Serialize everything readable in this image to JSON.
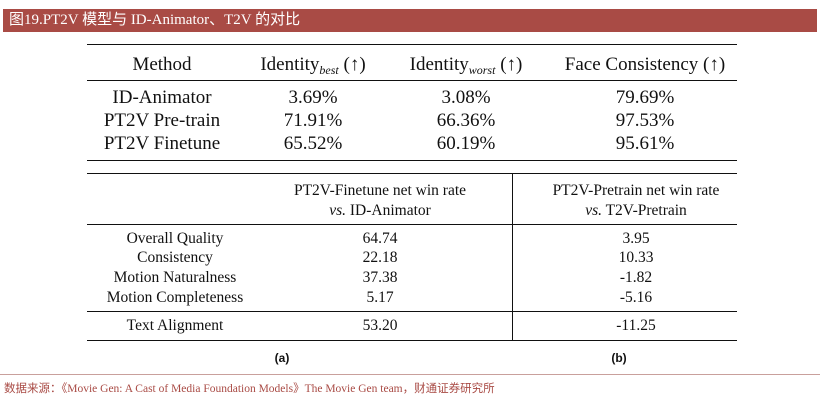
{
  "figure_title": "图19.PT2V 模型与 ID-Animator、T2V 的对比",
  "table1": {
    "headers": {
      "method": "Method",
      "id_best": "Identity",
      "id_best_sub": "best",
      "id_worst": "Identity",
      "id_worst_sub": "worst",
      "face": "Face Consistency",
      "arrow": "(↑)"
    },
    "rows": [
      {
        "method": "ID-Animator",
        "best": "3.69%",
        "worst": "3.08%",
        "face": "79.69%"
      },
      {
        "method": "PT2V Pre-train",
        "best": "71.91%",
        "worst": "66.36%",
        "face": "97.53%"
      },
      {
        "method": "PT2V Finetune",
        "best": "65.52%",
        "worst": "60.19%",
        "face": "95.61%"
      }
    ]
  },
  "table2": {
    "col_a_line1": "PT2V-Finetune net win rate",
    "col_a_vs": "vs.",
    "col_a_line2": "ID-Animator",
    "col_b_line1": "PT2V-Pretrain net win rate",
    "col_b_vs": "vs.",
    "col_b_line2": "T2V-Pretrain",
    "rows": [
      {
        "label": "Overall Quality",
        "a": "64.74",
        "b": "3.95"
      },
      {
        "label": "Consistency",
        "a": "22.18",
        "b": "10.33"
      },
      {
        "label": "Motion Naturalness",
        "a": "37.38",
        "b": "-1.82"
      },
      {
        "label": "Motion Completeness",
        "a": "5.17",
        "b": "-5.16"
      },
      {
        "label": "Text Alignment",
        "a": "53.20",
        "b": "-11.25"
      }
    ],
    "caption_a": "(a)",
    "caption_b": "(b)"
  },
  "source": "数据来源：《Movie Gen: A Cast of Media Foundation Models》The Movie Gen team，财通证券研究所"
}
